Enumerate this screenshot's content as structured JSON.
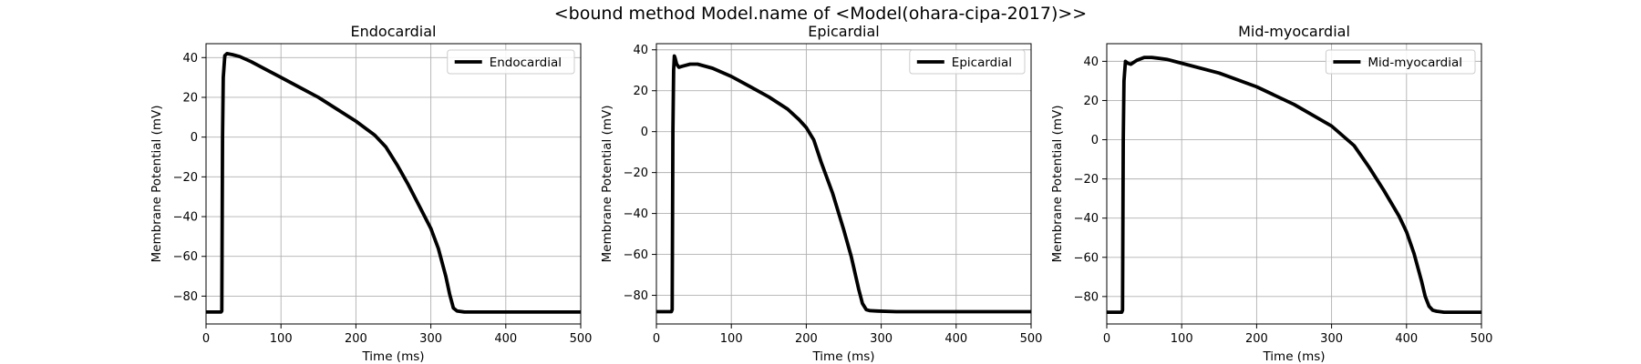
{
  "figure": {
    "suptitle": "<bound method Model.name of <Model(ohara-cipa-2017)>>"
  },
  "chart_data": [
    {
      "type": "line",
      "title": "Endocardial",
      "xlabel": "Time (ms)",
      "ylabel": "Membrane Potential (mV)",
      "xlim": [
        0,
        500
      ],
      "ylim": [
        -94,
        47
      ],
      "xticks": [
        0,
        100,
        200,
        300,
        400,
        500
      ],
      "yticks": [
        -80,
        -60,
        -40,
        -20,
        0,
        20,
        40
      ],
      "grid": true,
      "legend_position": "top-right",
      "series": [
        {
          "name": "Endocardial",
          "color": "#000000",
          "x": [
            0,
            20,
            21,
            22,
            23,
            25,
            28,
            35,
            45,
            60,
            80,
            100,
            125,
            150,
            175,
            200,
            225,
            240,
            255,
            270,
            285,
            300,
            310,
            320,
            325,
            330,
            335,
            345,
            360,
            400,
            450,
            500
          ],
          "y": [
            -88,
            -88,
            -87.5,
            0,
            30,
            41,
            42,
            41.5,
            40.5,
            38,
            34,
            30,
            25,
            20,
            14,
            8,
            1,
            -5,
            -14,
            -24,
            -35,
            -46,
            -56,
            -70,
            -79,
            -86,
            -87.5,
            -88,
            -88,
            -88,
            -88,
            -88
          ]
        }
      ]
    },
    {
      "type": "line",
      "title": "Epicardial",
      "xlabel": "Time (ms)",
      "ylabel": "Membrane Potential (mV)",
      "xlim": [
        0,
        500
      ],
      "ylim": [
        -94,
        43
      ],
      "xticks": [
        0,
        100,
        200,
        300,
        400,
        500
      ],
      "yticks": [
        -80,
        -60,
        -40,
        -20,
        0,
        20,
        40
      ],
      "grid": true,
      "legend_position": "top-right",
      "series": [
        {
          "name": "Epicardial",
          "color": "#000000",
          "x": [
            0,
            20,
            21,
            22,
            23,
            24,
            25,
            27,
            30,
            35,
            45,
            55,
            75,
            100,
            125,
            150,
            175,
            190,
            200,
            210,
            220,
            235,
            250,
            260,
            270,
            275,
            280,
            285,
            295,
            320,
            400,
            500
          ],
          "y": [
            -88,
            -88,
            -87,
            0,
            30,
            37,
            36,
            33,
            31.5,
            32,
            33,
            33,
            31,
            27,
            22,
            17,
            11,
            6,
            2,
            -4,
            -15,
            -30,
            -48,
            -61,
            -77,
            -84,
            -87,
            -87.5,
            -87.7,
            -88,
            -88,
            -88
          ]
        }
      ]
    },
    {
      "type": "line",
      "title": "Mid-myocardial",
      "xlabel": "Time (ms)",
      "ylabel": "Membrane Potential (mV)",
      "xlim": [
        0,
        500
      ],
      "ylim": [
        -94,
        49
      ],
      "xticks": [
        0,
        100,
        200,
        300,
        400,
        500
      ],
      "yticks": [
        -80,
        -60,
        -40,
        -20,
        0,
        20,
        40
      ],
      "grid": true,
      "legend_position": "top-right",
      "series": [
        {
          "name": "Mid-myocardial",
          "color": "#000000",
          "x": [
            0,
            20,
            21,
            22,
            23,
            25,
            28,
            32,
            40,
            50,
            60,
            80,
            100,
            150,
            200,
            250,
            300,
            330,
            350,
            370,
            390,
            400,
            410,
            420,
            425,
            430,
            435,
            440,
            450,
            470,
            500
          ],
          "y": [
            -88,
            -88,
            -87,
            0,
            30,
            40,
            39,
            38.5,
            40.5,
            42,
            42,
            41,
            39,
            34,
            27,
            18,
            7,
            -3,
            -14,
            -26,
            -39,
            -47,
            -58,
            -72,
            -80,
            -85,
            -87,
            -87.5,
            -88,
            -88,
            -88
          ]
        }
      ]
    }
  ]
}
